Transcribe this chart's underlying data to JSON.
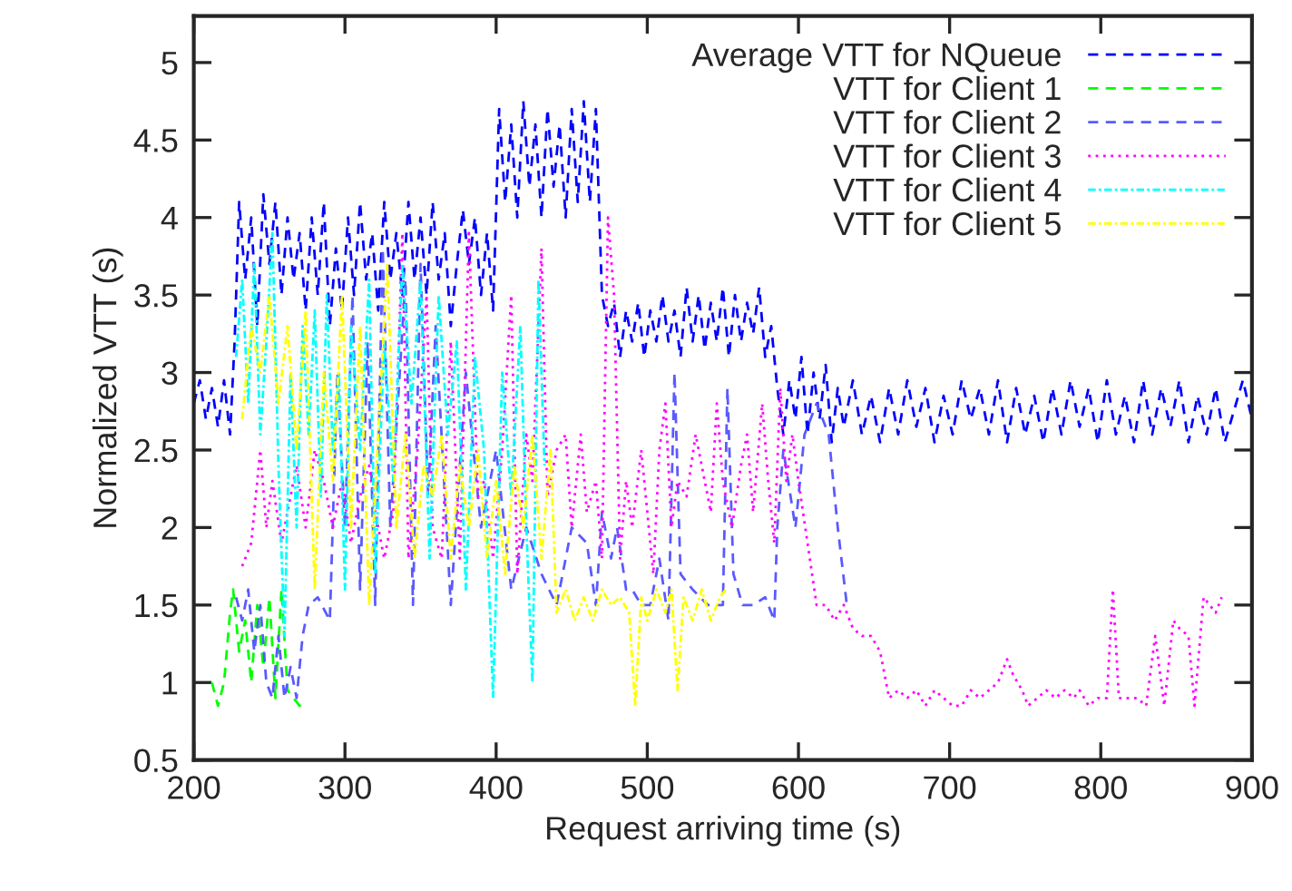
{
  "chart_data": {
    "type": "line",
    "xlabel": "Request arriving time (s)",
    "ylabel": "Normalized VTT (s)",
    "xlim": [
      200,
      900
    ],
    "ylim": [
      0.5,
      5.3
    ],
    "xticks": [
      200,
      300,
      400,
      500,
      600,
      700,
      800,
      900
    ],
    "yticks": [
      0.5,
      1,
      1.5,
      2,
      2.5,
      3,
      3.5,
      4,
      4.5,
      5
    ],
    "grid": false,
    "legend": "top right",
    "marker": "none",
    "series": [
      {
        "name": "Average VTT for NQueue",
        "color": "#0000ff",
        "line_style": "dashed",
        "x": [
          200,
          204,
          208,
          212,
          216,
          220,
          224,
          227,
          230,
          234,
          238,
          242,
          246,
          250,
          254,
          258,
          262,
          266,
          270,
          274,
          278,
          282,
          286,
          290,
          294,
          298,
          302,
          306,
          310,
          314,
          318,
          322,
          326,
          330,
          334,
          338,
          342,
          346,
          350,
          354,
          358,
          362,
          366,
          370,
          374,
          378,
          382,
          386,
          390,
          394,
          398,
          402,
          406,
          410,
          414,
          418,
          422,
          426,
          430,
          434,
          438,
          442,
          446,
          450,
          454,
          458,
          462,
          466,
          470,
          474,
          478,
          482,
          486,
          490,
          494,
          498,
          502,
          506,
          510,
          514,
          518,
          522,
          526,
          530,
          534,
          538,
          542,
          546,
          550,
          554,
          558,
          562,
          566,
          570,
          574,
          578,
          582,
          586,
          590,
          594,
          598,
          602,
          606,
          610,
          614,
          618,
          622,
          626,
          630,
          636,
          642,
          648,
          654,
          660,
          666,
          672,
          678,
          684,
          690,
          696,
          702,
          708,
          714,
          720,
          726,
          732,
          738,
          744,
          750,
          756,
          762,
          768,
          774,
          780,
          786,
          792,
          798,
          804,
          810,
          816,
          822,
          828,
          834,
          840,
          846,
          852,
          858,
          864,
          870,
          876,
          882,
          888,
          894,
          900
        ],
        "values": [
          2.8,
          2.95,
          2.7,
          2.9,
          2.65,
          2.95,
          2.6,
          3.2,
          4.1,
          3.6,
          4.0,
          3.3,
          4.15,
          3.7,
          4.1,
          3.5,
          4.0,
          3.6,
          3.9,
          3.4,
          4.0,
          3.5,
          4.1,
          3.3,
          3.8,
          3.4,
          4.0,
          3.5,
          4.1,
          3.6,
          3.9,
          3.4,
          4.1,
          3.6,
          3.9,
          3.5,
          4.1,
          3.6,
          4.0,
          3.5,
          4.1,
          3.6,
          3.9,
          3.3,
          3.7,
          4.05,
          3.7,
          4.0,
          3.5,
          3.9,
          3.4,
          4.7,
          4.1,
          4.6,
          4.0,
          4.75,
          4.2,
          4.6,
          4.0,
          4.7,
          4.2,
          4.6,
          4.0,
          4.7,
          4.1,
          4.75,
          4.1,
          4.7,
          3.5,
          3.3,
          3.45,
          3.1,
          3.4,
          3.2,
          3.45,
          3.1,
          3.4,
          3.2,
          3.5,
          3.2,
          3.4,
          3.1,
          3.55,
          3.2,
          3.5,
          3.15,
          3.45,
          3.2,
          3.55,
          3.1,
          3.5,
          3.2,
          3.45,
          3.25,
          3.55,
          3.1,
          3.3,
          2.9,
          2.6,
          2.95,
          2.7,
          3.1,
          2.6,
          3.0,
          2.7,
          3.05,
          2.55,
          2.9,
          2.65,
          2.95,
          2.6,
          2.85,
          2.55,
          2.9,
          2.6,
          2.95,
          2.65,
          2.9,
          2.55,
          2.85,
          2.6,
          2.95,
          2.7,
          2.9,
          2.6,
          2.95,
          2.55,
          2.9,
          2.6,
          2.85,
          2.55,
          2.9,
          2.6,
          2.95,
          2.65,
          2.9,
          2.55,
          2.95,
          2.6,
          2.85,
          2.55,
          2.95,
          2.6,
          2.9,
          2.65,
          2.95,
          2.55,
          2.85,
          2.6,
          2.9,
          2.55,
          2.75,
          2.95,
          2.7
        ]
      },
      {
        "name": "VTT for Client 1",
        "color": "#00ff00",
        "line_style": "dashed",
        "x": [
          212,
          216,
          220,
          224,
          226,
          230,
          234,
          238,
          242,
          246,
          250,
          254,
          258,
          262,
          266,
          270,
          274
        ],
        "values": [
          1.0,
          0.85,
          1.0,
          1.45,
          1.6,
          1.2,
          1.4,
          1.0,
          1.5,
          1.1,
          1.55,
          0.9,
          1.6,
          0.95,
          0.9,
          0.85,
          0.87
        ]
      },
      {
        "name": "VTT for Client 2",
        "color": "#5a5aff",
        "line_style": "dashed",
        "x": [
          228,
          232,
          236,
          240,
          244,
          248,
          252,
          256,
          260,
          264,
          268,
          272,
          276,
          282,
          290,
          295,
          300,
          305,
          310,
          315,
          320,
          325,
          330,
          340,
          345,
          350,
          355,
          360,
          370,
          380,
          390,
          400,
          410,
          420,
          430,
          440,
          450,
          460,
          466,
          470,
          476,
          480,
          486,
          490,
          496,
          502,
          508,
          514,
          518,
          522,
          530,
          540,
          550,
          553,
          557,
          563,
          570,
          578,
          584,
          586,
          590,
          598,
          604,
          612,
          620,
          626,
          632
        ],
        "values": [
          1.55,
          1.4,
          1.6,
          1.2,
          1.5,
          1.0,
          0.9,
          1.3,
          0.9,
          1.1,
          0.9,
          1.3,
          1.5,
          1.55,
          1.4,
          3.0,
          2.0,
          3.5,
          1.6,
          3.2,
          1.5,
          3.8,
          2.0,
          3.6,
          1.5,
          3.7,
          2.2,
          3.3,
          1.5,
          3.0,
          2.0,
          2.5,
          1.6,
          2.0,
          1.7,
          1.5,
          2.0,
          1.9,
          1.5,
          2.1,
          1.8,
          2.0,
          1.6,
          1.6,
          1.5,
          1.5,
          1.8,
          1.4,
          3.0,
          1.7,
          1.6,
          1.5,
          1.5,
          2.9,
          1.7,
          1.5,
          1.5,
          1.55,
          1.4,
          2.0,
          2.5,
          2.0,
          2.6,
          2.8,
          2.6,
          2.0,
          1.5
        ]
      },
      {
        "name": "VTT for Client 3",
        "color": "#ff00ff",
        "line_style": "dotted",
        "x": [
          232,
          238,
          244,
          248,
          252,
          258,
          262,
          268,
          274,
          280,
          286,
          292,
          298,
          304,
          310,
          316,
          320,
          326,
          332,
          338,
          342,
          348,
          354,
          358,
          364,
          370,
          376,
          382,
          388,
          392,
          398,
          404,
          410,
          414,
          420,
          424,
          430,
          434,
          440,
          446,
          450,
          456,
          460,
          466,
          470,
          474,
          478,
          482,
          486,
          490,
          496,
          500,
          504,
          508,
          512,
          516,
          520,
          526,
          532,
          536,
          542,
          546,
          550,
          556,
          562,
          566,
          570,
          576,
          580,
          584,
          588,
          592,
          596,
          600,
          606,
          612,
          618,
          624,
          630,
          636,
          642,
          648,
          654,
          660,
          666,
          672,
          678,
          684,
          690,
          696,
          702,
          708,
          714,
          720,
          726,
          732,
          738,
          742,
          748,
          752,
          758,
          764,
          770,
          776,
          782,
          786,
          792,
          798,
          804,
          808,
          812,
          818,
          824,
          830,
          836,
          842,
          848,
          852,
          858,
          862,
          868,
          872,
          876,
          880
        ],
        "values": [
          1.75,
          1.9,
          2.5,
          2.0,
          2.3,
          1.9,
          2.1,
          2.4,
          2.0,
          2.5,
          2.3,
          2.0,
          2.3,
          1.9,
          2.2,
          2.4,
          2.1,
          1.8,
          2.1,
          3.9,
          1.8,
          2.5,
          3.5,
          2.0,
          1.8,
          3.2,
          1.8,
          3.9,
          2.2,
          2.3,
          1.8,
          2.5,
          3.5,
          1.7,
          2.6,
          2.3,
          3.8,
          2.2,
          2.5,
          2.6,
          2.0,
          2.6,
          2.1,
          2.3,
          1.8,
          4.0,
          3.5,
          1.8,
          2.3,
          2.0,
          2.5,
          2.1,
          1.7,
          2.5,
          2.8,
          2.0,
          2.3,
          2.2,
          2.6,
          2.4,
          2.1,
          2.8,
          2.3,
          2.0,
          2.4,
          2.6,
          2.1,
          2.8,
          2.3,
          1.9,
          2.9,
          2.3,
          2.6,
          2.3,
          1.9,
          1.5,
          1.5,
          1.4,
          1.5,
          1.35,
          1.3,
          1.3,
          1.2,
          0.9,
          0.95,
          0.9,
          0.95,
          0.85,
          0.95,
          0.9,
          0.85,
          0.85,
          0.95,
          0.9,
          0.95,
          1.0,
          1.15,
          1.05,
          0.95,
          0.85,
          0.9,
          0.95,
          0.9,
          0.95,
          0.9,
          0.95,
          0.85,
          0.9,
          0.9,
          1.6,
          0.9,
          0.9,
          0.9,
          0.85,
          1.3,
          0.85,
          1.4,
          1.35,
          1.3,
          0.85,
          1.55,
          1.5,
          1.45,
          1.55
        ]
      },
      {
        "name": "VTT for Client 4",
        "color": "#00ffff",
        "line_style": "dashdot",
        "x": [
          228,
          232,
          236,
          240,
          244,
          248,
          252,
          256,
          260,
          264,
          268,
          272,
          276,
          280,
          284,
          288,
          292,
          296,
          300,
          304,
          310,
          316,
          320,
          326,
          332,
          338,
          344,
          350,
          356,
          362,
          368,
          374,
          380,
          386,
          392,
          398,
          404,
          410,
          416,
          420,
          424,
          428,
          432
        ],
        "values": [
          3.1,
          3.6,
          2.8,
          3.7,
          2.6,
          3.2,
          3.9,
          2.4,
          1.3,
          3.0,
          2.0,
          3.3,
          2.6,
          3.4,
          2.2,
          3.5,
          2.5,
          3.0,
          1.6,
          3.3,
          2.5,
          3.6,
          1.7,
          3.2,
          2.3,
          3.7,
          2.8,
          3.6,
          1.8,
          3.5,
          2.6,
          3.2,
          1.6,
          3.1,
          2.5,
          0.9,
          3.0,
          2.2,
          3.3,
          2.0,
          1.0,
          3.6,
          2.4
        ]
      },
      {
        "name": "VTT for Client 5",
        "color": "#ffff00",
        "line_style": "dashdot",
        "x": [
          232,
          238,
          244,
          250,
          256,
          262,
          268,
          274,
          280,
          286,
          292,
          298,
          304,
          310,
          316,
          322,
          328,
          334,
          340,
          346,
          352,
          358,
          364,
          370,
          376,
          382,
          388,
          394,
          400,
          406,
          412,
          418,
          424,
          430,
          436,
          440,
          446,
          452,
          458,
          464,
          470,
          476,
          482,
          488,
          492,
          496,
          500,
          506,
          512,
          516,
          520,
          524,
          530,
          536,
          542,
          548,
          552
        ],
        "values": [
          2.7,
          3.3,
          3.0,
          3.5,
          2.8,
          3.3,
          2.5,
          3.4,
          1.6,
          3.0,
          2.3,
          3.5,
          2.0,
          3.3,
          1.5,
          2.6,
          3.7,
          2.0,
          2.6,
          1.8,
          2.4,
          2.2,
          2.6,
          1.8,
          2.4,
          2.0,
          2.5,
          1.8,
          2.3,
          1.7,
          2.4,
          2.0,
          2.6,
          1.8,
          2.5,
          1.45,
          1.6,
          1.4,
          1.55,
          1.4,
          1.6,
          1.5,
          1.55,
          1.45,
          0.85,
          1.55,
          1.4,
          1.6,
          1.45,
          1.6,
          0.95,
          1.55,
          1.4,
          1.6,
          1.4,
          1.55,
          1.6
        ]
      }
    ]
  }
}
